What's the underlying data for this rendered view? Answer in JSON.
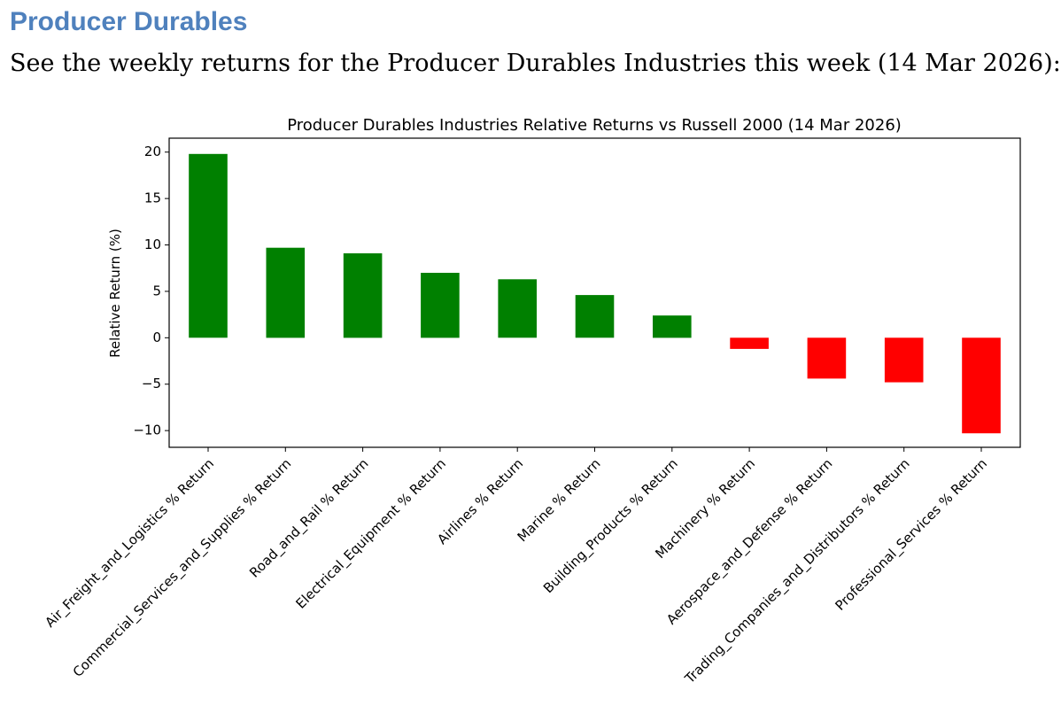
{
  "page": {
    "heading": "Producer Durables",
    "subtitle": "See the weekly returns for the Producer Durables Industries this week (14 Mar 2026):"
  },
  "chart_data": {
    "type": "bar",
    "title": "Producer Durables Industries Relative Returns vs Russell 2000 (14 Mar 2026)",
    "xlabel": "",
    "ylabel": "Relative Return (%)",
    "ylim": [
      -11.8,
      21.5
    ],
    "yticks": [
      20,
      15,
      10,
      5,
      0,
      -5,
      -10
    ],
    "ytick_labels": [
      "20",
      "15",
      "10",
      "5",
      "0",
      "−5",
      "−10"
    ],
    "grid": false,
    "legend": "none",
    "positive_color": "#008000",
    "negative_color": "#ff0000",
    "categories": [
      "Air_Freight_and_Logistics % Return",
      "Commercial_Services_and_Supplies % Return",
      "Road_and_Rail % Return",
      "Electrical_Equipment % Return",
      "Airlines % Return",
      "Marine % Return",
      "Building_Products % Return",
      "Machinery % Return",
      "Aerospace_and_Defense % Return",
      "Trading_Companies_and_Distributors % Return",
      "Professional_Services % Return"
    ],
    "values": [
      19.8,
      9.7,
      9.1,
      7.0,
      6.3,
      4.6,
      2.4,
      -1.2,
      -4.4,
      -4.8,
      -10.3
    ]
  }
}
